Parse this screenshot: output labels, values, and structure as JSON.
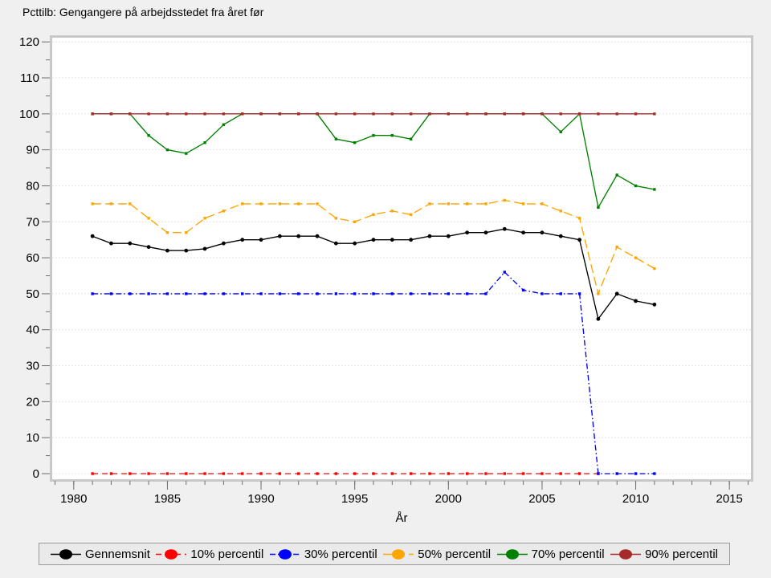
{
  "title": "Pcttilb: Gengangere på arbejdsstedet fra året før",
  "colors": {
    "page_background": "#f0f0f0",
    "plot_background": "#ffffff",
    "frame": "#c8c8c8",
    "gridline": "#dcdcdc",
    "tick": "#6e6e6e"
  },
  "chart_data": {
    "type": "line",
    "title": "Pcttilb: Gengangere på arbejdsstedet fra året før",
    "xlabel": "År",
    "ylabel": "",
    "xlim": [
      1978.85,
      2016.15
    ],
    "ylim": [
      0,
      120
    ],
    "x_major_ticks": [
      1980,
      1985,
      1990,
      1995,
      2000,
      2005,
      2010,
      2015
    ],
    "x_minor_ticks": {
      "start": 1979,
      "end": 2016,
      "step": 1
    },
    "y_major_ticks": [
      0,
      10,
      20,
      30,
      40,
      50,
      60,
      70,
      80,
      90,
      100,
      110,
      120
    ],
    "y_minor_ticks": [
      5,
      15,
      25,
      35,
      45,
      55,
      65,
      75,
      85,
      95,
      105,
      115
    ],
    "grid": "horizontal-dotted-at-y-majors",
    "legend_position": "bottom",
    "years": [
      1981,
      1982,
      1983,
      1984,
      1985,
      1986,
      1987,
      1988,
      1989,
      1990,
      1991,
      1992,
      1993,
      1994,
      1995,
      1996,
      1997,
      1998,
      1999,
      2000,
      2001,
      2002,
      2003,
      2004,
      2005,
      2006,
      2007,
      2008,
      2009,
      2010,
      2011
    ],
    "series": [
      {
        "name": "Gennemsnit",
        "color": "#000000",
        "line_style": "solid",
        "marker": "circle",
        "values": [
          66,
          64,
          64,
          63,
          62,
          62,
          62.5,
          64,
          65,
          65,
          66,
          66,
          66,
          64,
          64,
          65,
          65,
          65,
          66,
          66,
          67,
          67,
          68,
          67,
          67,
          66,
          65,
          43,
          50,
          48,
          47
        ]
      },
      {
        "name": "10% percentil",
        "color": "#ff0000",
        "line_style": "short-dash",
        "marker": "square",
        "values": [
          0,
          0,
          0,
          0,
          0,
          0,
          0,
          0,
          0,
          0,
          0,
          0,
          0,
          0,
          0,
          0,
          0,
          0,
          0,
          0,
          0,
          0,
          0,
          0,
          0,
          0,
          0,
          0,
          null,
          null,
          null
        ]
      },
      {
        "name": "30% percentil",
        "color": "#0000ff",
        "line_style": "dash-dot",
        "marker": "square",
        "values": [
          50,
          50,
          50,
          50,
          50,
          50,
          50,
          50,
          50,
          50,
          50,
          50,
          50,
          50,
          50,
          50,
          50,
          50,
          50,
          50,
          50,
          50,
          56,
          51,
          50,
          50,
          50,
          0,
          0,
          0,
          0
        ]
      },
      {
        "name": "50% percentil",
        "color": "#ffa500",
        "line_style": "long-dash",
        "marker": "square",
        "values": [
          75,
          75,
          75,
          71,
          67,
          67,
          71,
          73,
          75,
          75,
          75,
          75,
          75,
          71,
          70,
          72,
          73,
          72,
          75,
          75,
          75,
          75,
          76,
          75,
          75,
          73,
          71,
          50,
          63,
          60,
          57
        ]
      },
      {
        "name": "70% percentil",
        "color": "#008000",
        "line_style": "solid",
        "marker": "square",
        "values": [
          100,
          100,
          100,
          94,
          90,
          89,
          92,
          97,
          100,
          100,
          100,
          100,
          100,
          93,
          92,
          94,
          94,
          93,
          100,
          100,
          100,
          100,
          100,
          100,
          100,
          95,
          100,
          74,
          83,
          80,
          79
        ]
      },
      {
        "name": "90% percentil",
        "color": "#a52a2a",
        "line_style": "solid",
        "marker": "square",
        "values": [
          100,
          100,
          100,
          100,
          100,
          100,
          100,
          100,
          100,
          100,
          100,
          100,
          100,
          100,
          100,
          100,
          100,
          100,
          100,
          100,
          100,
          100,
          100,
          100,
          100,
          100,
          100,
          100,
          100,
          100,
          100
        ]
      }
    ]
  }
}
